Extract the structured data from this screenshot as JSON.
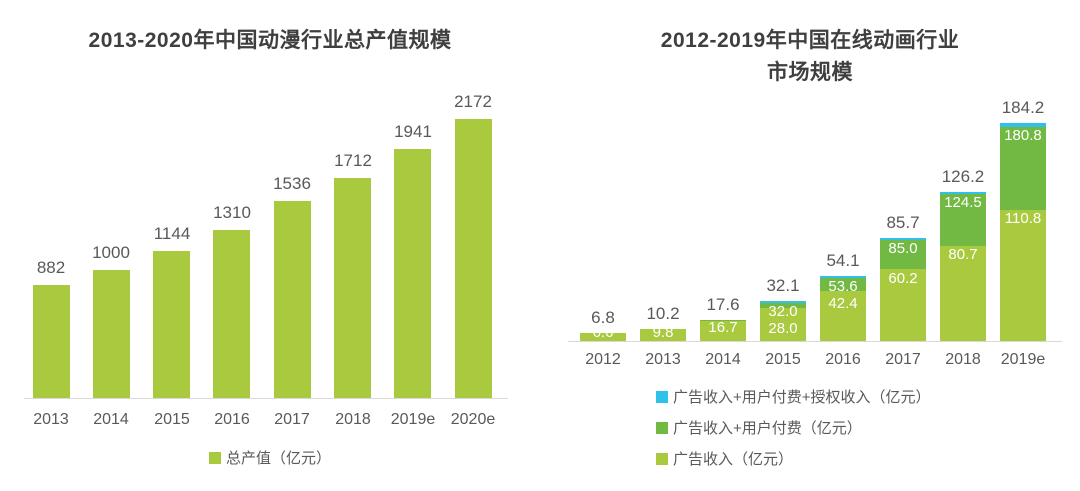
{
  "colors": {
    "bar_yellow_green": "#a9ca3e",
    "bar_mid_green": "#72b944",
    "bar_cyan": "#2fc1e9",
    "title_text": "#3f3f3f",
    "label_text": "#595959",
    "inside_label_text": "#ffffff",
    "axis_line": "#d9d9d9",
    "background": "#ffffff"
  },
  "chart_data": [
    {
      "id": "total-output-value",
      "type": "bar",
      "title": "2013-2020年中国动漫行业总产值规模",
      "categories": [
        "2013",
        "2014",
        "2015",
        "2016",
        "2017",
        "2018",
        "2019e",
        "2020e"
      ],
      "values": [
        882,
        1000,
        1144,
        1310,
        1536,
        1712,
        1941,
        2172
      ],
      "value_labels": [
        "882",
        "1000",
        "1144",
        "1310",
        "1536",
        "1712",
        "1941",
        "2172"
      ],
      "ylim": [
        0,
        2300
      ],
      "grid": false,
      "bar_color": "#a9ca3e",
      "legend_position": "bottom-center",
      "legend": [
        {
          "label": "总产值（亿元）",
          "color": "#a9ca3e"
        }
      ]
    },
    {
      "id": "online-animation-market",
      "type": "stacked-bar",
      "title": "2012-2019年中国在线动画行业市场规模",
      "title_line1": "2012-2019年中国在线动画行业",
      "title_line2": "市场规模",
      "categories": [
        "2012",
        "2013",
        "2014",
        "2015",
        "2016",
        "2017",
        "2018",
        "2019e"
      ],
      "series": [
        {
          "name": "广告收入（亿元）",
          "color": "#a9ca3e",
          "cumulative": [
            6.6,
            9.8,
            16.7,
            28.0,
            42.4,
            60.2,
            80.7,
            110.8
          ]
        },
        {
          "name": "广告收入+用户付费（亿元）",
          "color": "#72b944",
          "cumulative": [
            6.8,
            10.2,
            17.6,
            32.0,
            53.6,
            85.0,
            124.5,
            180.8
          ]
        },
        {
          "name": "广告收入+用户付费+授权收入（亿元）",
          "color": "#2fc1e9",
          "cumulative": [
            6.8,
            10.2,
            17.6,
            32.1,
            54.1,
            85.7,
            126.2,
            184.2
          ]
        }
      ],
      "totals": [
        6.8,
        10.2,
        17.6,
        32.1,
        54.1,
        85.7,
        126.2,
        184.2
      ],
      "total_labels": [
        "6.8",
        "10.2",
        "17.6",
        "32.1",
        "54.1",
        "85.7",
        "126.2",
        "184.2"
      ],
      "inside_labels": [
        [
          "6.6"
        ],
        [
          "9.8"
        ],
        [
          "16.7"
        ],
        [
          "32.0",
          "28.0"
        ],
        [
          "53.6",
          "42.4"
        ],
        [
          "85.0",
          "60.2"
        ],
        [
          "124.5",
          "80.7"
        ],
        [
          "180.8",
          "110.8"
        ]
      ],
      "ylim": [
        0,
        195
      ],
      "grid": false,
      "legend_position": "bottom-left",
      "legend": [
        {
          "label": "广告收入+用户付费+授权收入（亿元）",
          "color": "#2fc1e9"
        },
        {
          "label": "广告收入+用户付费（亿元）",
          "color": "#72b944"
        },
        {
          "label": "广告收入（亿元）",
          "color": "#a9ca3e"
        }
      ]
    }
  ]
}
